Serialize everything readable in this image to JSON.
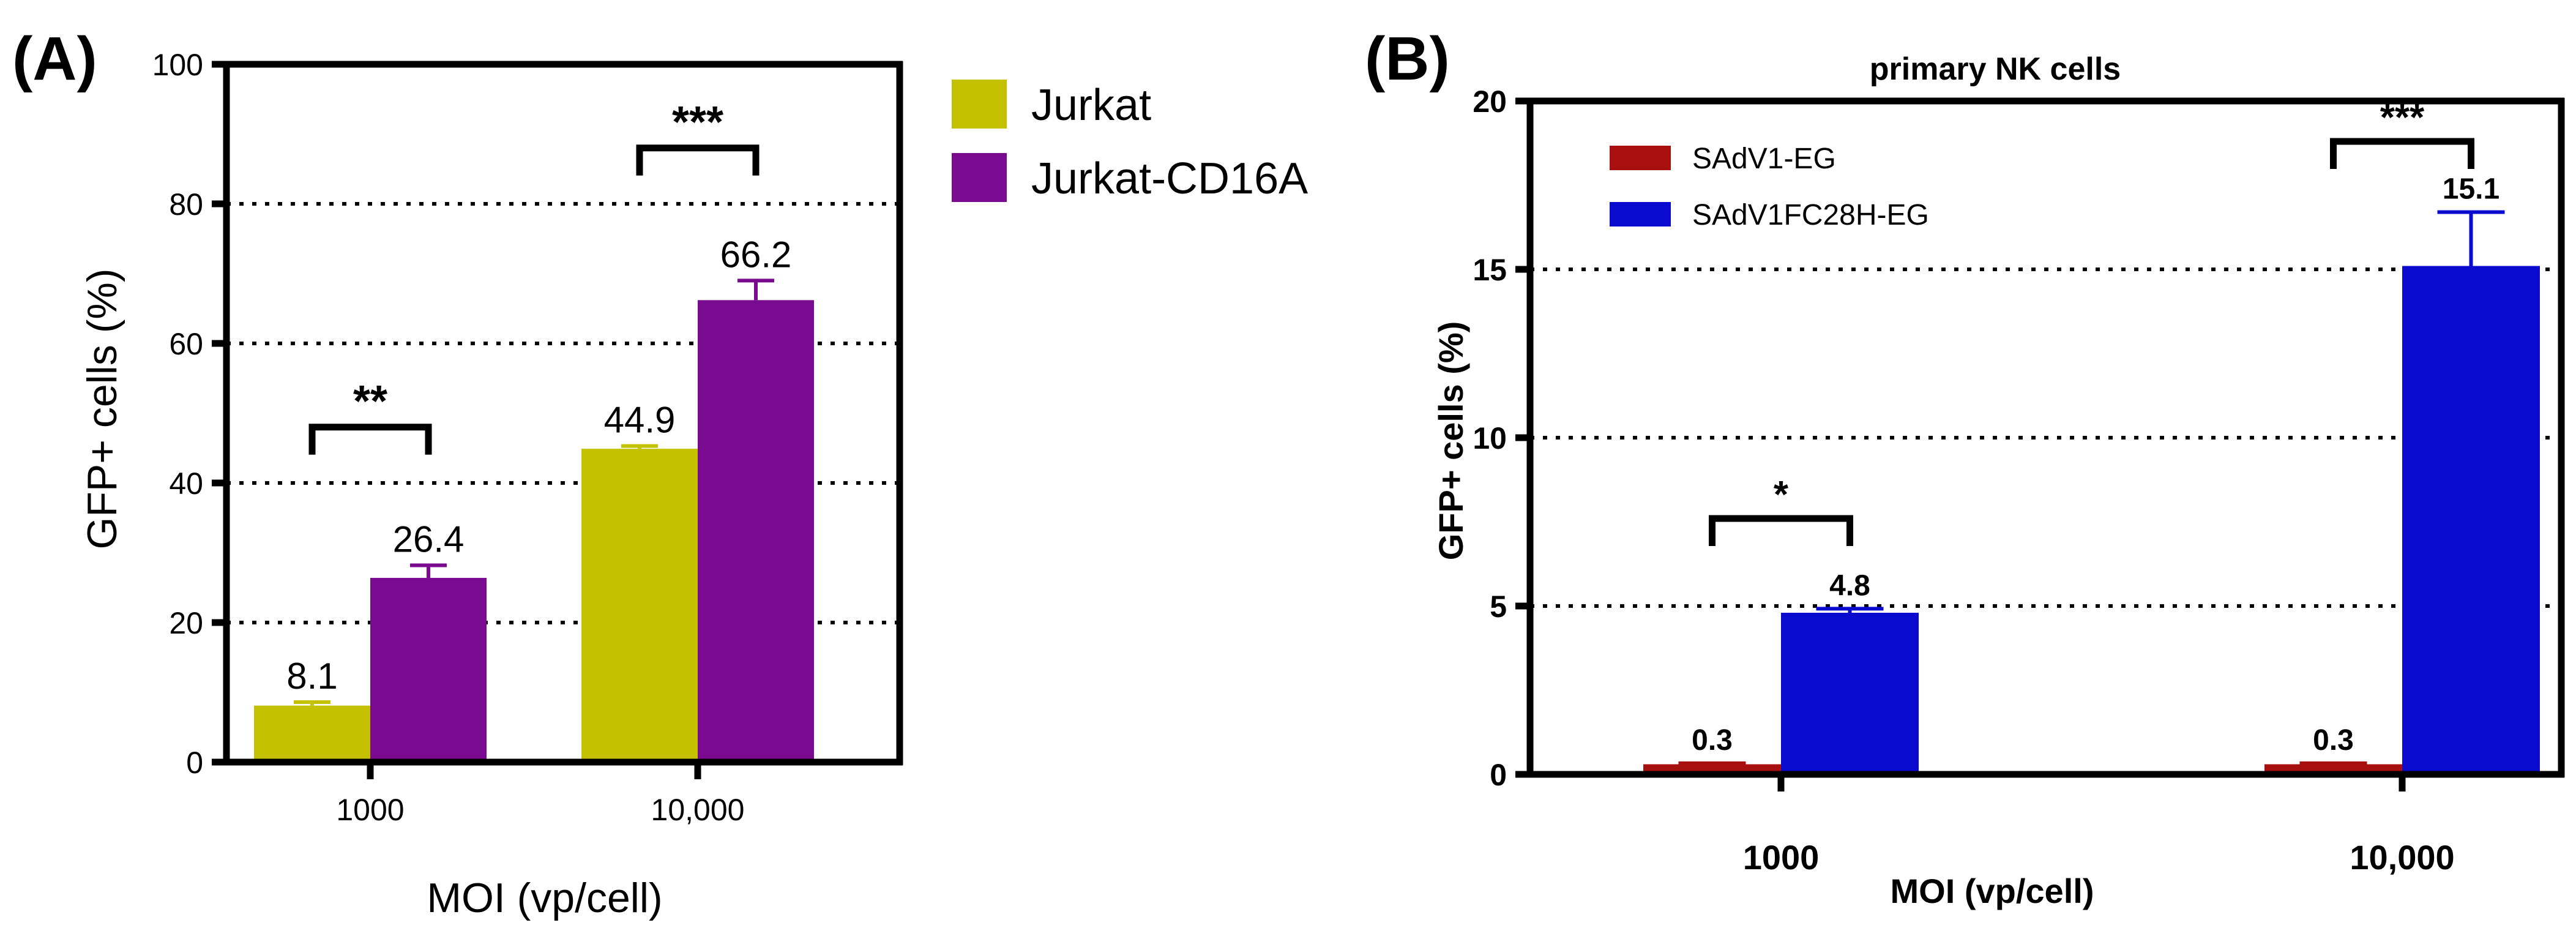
{
  "chart_data": [
    {
      "type": "bar",
      "panel_label": "(A)",
      "title": "",
      "xlabel": "MOI (vp/cell)",
      "ylabel": "GFP+ cells (%)",
      "ylim": [
        0,
        100
      ],
      "yticks": [
        "0",
        "20",
        "40",
        "60",
        "80",
        "100"
      ],
      "ytick_values": [
        0,
        20,
        40,
        60,
        80,
        100
      ],
      "gridlines": [
        20,
        40,
        60,
        80
      ],
      "categories": [
        "1000",
        "10,000"
      ],
      "legend_position": "right",
      "series": [
        {
          "name": "Jurkat",
          "color": "#c3c100",
          "values": [
            8.1,
            44.9
          ],
          "errors": [
            0.5,
            0.4
          ],
          "labels": [
            "8.1",
            "44.9"
          ]
        },
        {
          "name": "Jurkat-CD16A",
          "color": "#7a0a8f",
          "values": [
            26.4,
            66.2
          ],
          "errors": [
            1.8,
            2.8
          ],
          "labels": [
            "26.4",
            "66.2"
          ]
        }
      ],
      "significance": [
        {
          "category": 0,
          "label": "**",
          "y": 48
        },
        {
          "category": 1,
          "label": "***",
          "y": 88
        }
      ]
    },
    {
      "type": "bar",
      "panel_label": "(B)",
      "title": "primary NK cells",
      "xlabel": "MOI (vp/cell)",
      "ylabel": "GFP+ cells (%)",
      "ylim": [
        0,
        20
      ],
      "yticks": [
        "0",
        "5",
        "10",
        "15",
        "20"
      ],
      "ytick_values": [
        0,
        5,
        10,
        15,
        20
      ],
      "gridlines": [
        5,
        10,
        15
      ],
      "categories": [
        "1000",
        "10,000"
      ],
      "legend_position": "top-left",
      "series": [
        {
          "name": "SAdV1-EG",
          "color": "#a80f0f",
          "values": [
            0.3,
            0.3
          ],
          "errors": [
            0.03,
            0.03
          ],
          "labels": [
            "0.3",
            "0.3"
          ]
        },
        {
          "name": "SAdV1FC28H-EG",
          "color": "#0b0bd0",
          "values": [
            4.8,
            15.1
          ],
          "errors": [
            0.12,
            1.6
          ],
          "labels": [
            "4.8",
            "15.1"
          ]
        }
      ],
      "significance": [
        {
          "category": 0,
          "label": "*",
          "y": 7.6
        },
        {
          "category": 1,
          "label": "***",
          "y": 18.8
        }
      ]
    }
  ]
}
